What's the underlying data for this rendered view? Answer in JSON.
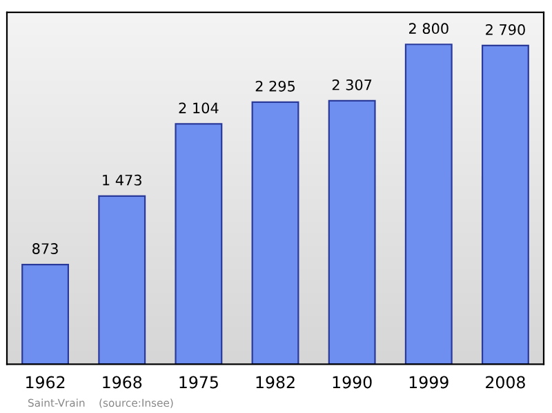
{
  "chart_data": {
    "type": "bar",
    "categories": [
      "1962",
      "1968",
      "1975",
      "1982",
      "1990",
      "1999",
      "2008"
    ],
    "values": [
      873,
      1473,
      2104,
      2295,
      2307,
      2800,
      2790
    ],
    "value_labels": [
      "873",
      "1 473",
      "2 104",
      "2 295",
      "2 307",
      "2 800",
      "2 790"
    ],
    "color": "#6f8ff0",
    "grid": false,
    "annotations": [
      "Saint-Vrain    (source:Insee)"
    ]
  }
}
